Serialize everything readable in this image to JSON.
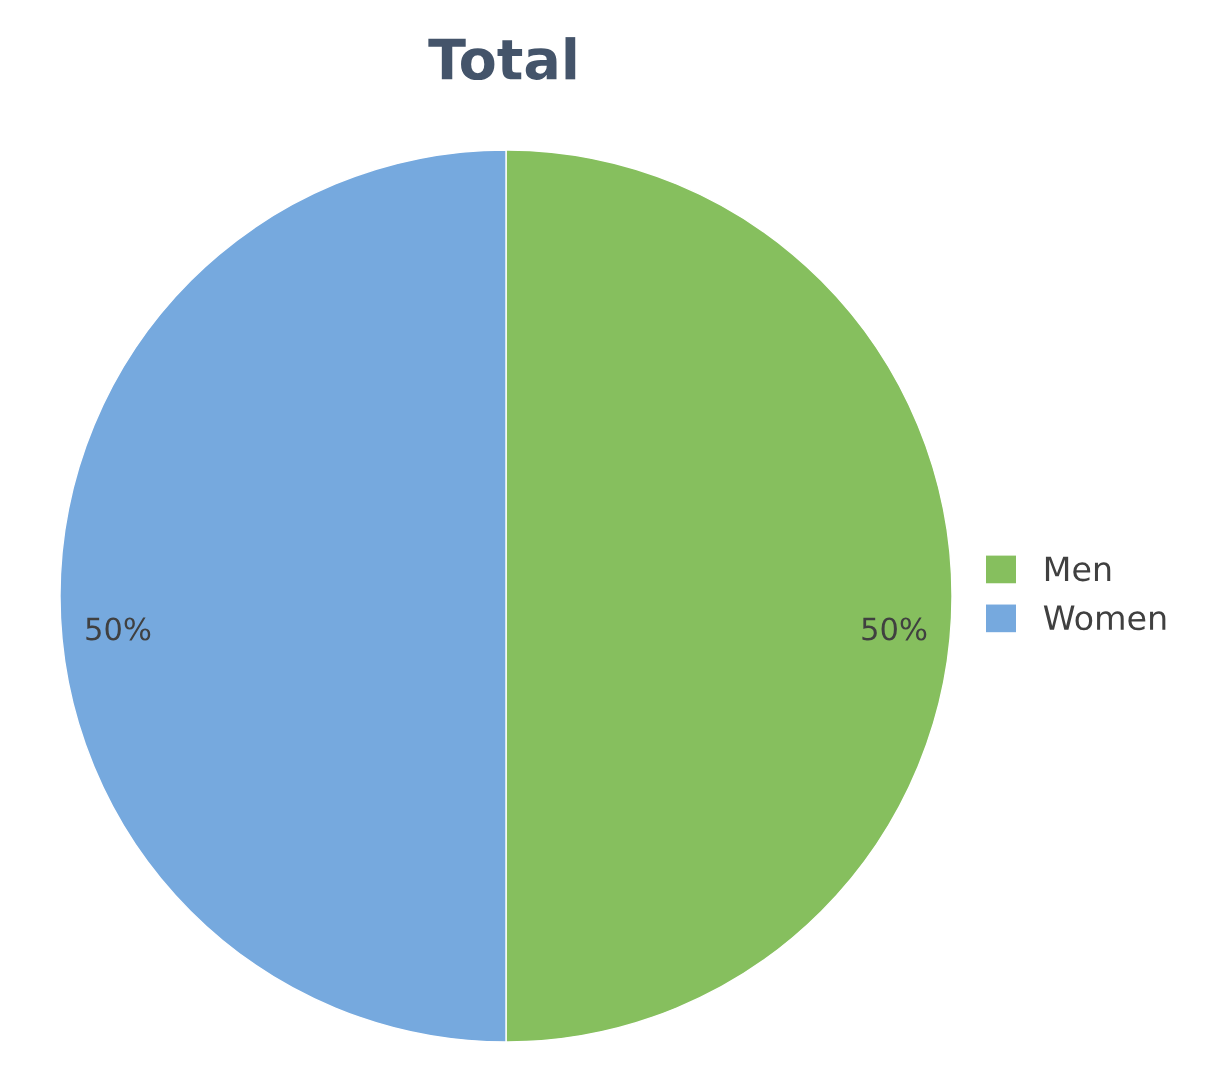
{
  "chart_data": {
    "type": "pie",
    "title": "Total",
    "categories": [
      "Men",
      "Women"
    ],
    "values": [
      50,
      50
    ],
    "colors": [
      "#86bf5e",
      "#76a9de"
    ],
    "value_labels": [
      "50%",
      "50%"
    ],
    "legend": "right"
  }
}
